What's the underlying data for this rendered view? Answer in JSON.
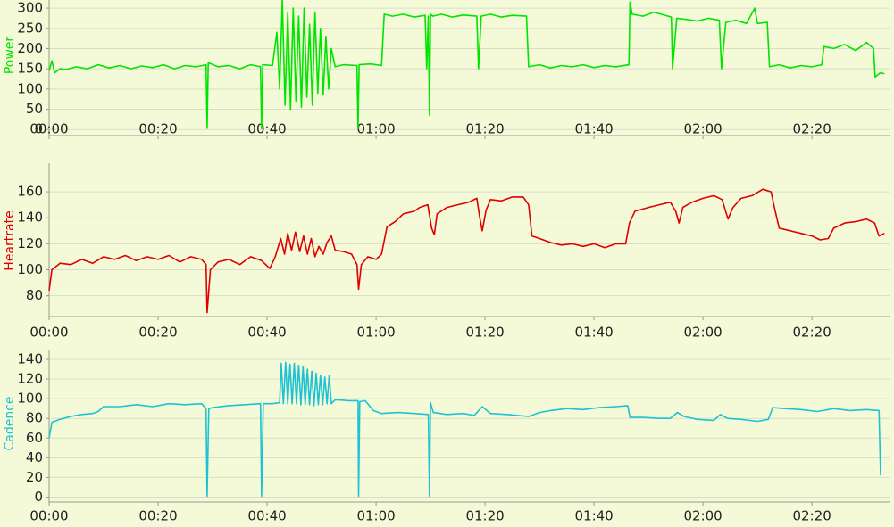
{
  "chart_data": [
    {
      "type": "line",
      "y_label": "Power",
      "color": "#00e400",
      "grid": true,
      "xlim": [
        0,
        154.4
      ],
      "ylim": [
        -15,
        320
      ],
      "yticks": [
        0,
        50,
        100,
        150,
        200,
        250,
        300
      ],
      "xticks": [
        {
          "value": 0,
          "label": "00:00"
        },
        {
          "value": 20,
          "label": "00:20"
        },
        {
          "value": 40,
          "label": "00:40"
        },
        {
          "value": 60,
          "label": "01:00"
        },
        {
          "value": 80,
          "label": "01:20"
        },
        {
          "value": 100,
          "label": "01:40"
        },
        {
          "value": 120,
          "label": "02:00"
        },
        {
          "value": 140,
          "label": "02:20"
        }
      ],
      "x": [
        0,
        0.5,
        1,
        2,
        3,
        5,
        7,
        9,
        11,
        13,
        15,
        17,
        19,
        21,
        23,
        25,
        27,
        28.8,
        29,
        29.2,
        31,
        33,
        35,
        37,
        38.8,
        39,
        39.2,
        41,
        41.8,
        42.3,
        42.8,
        43.3,
        43.8,
        44.3,
        44.8,
        45.3,
        45.8,
        46.3,
        46.8,
        47.3,
        47.8,
        48.3,
        48.8,
        49.3,
        49.8,
        50.3,
        50.8,
        51.3,
        51.8,
        52.5,
        54,
        56.5,
        56.7,
        56.9,
        59,
        61,
        61.5,
        63,
        65,
        67,
        69,
        69.3,
        69.6,
        69.8,
        70,
        70.4,
        72,
        74,
        76,
        78.5,
        78.8,
        79.3,
        81,
        83,
        85,
        87.6,
        88,
        90,
        92,
        94,
        96,
        98,
        100,
        102,
        104,
        106.4,
        106.6,
        107,
        109,
        111,
        114.2,
        114.4,
        115.2,
        117,
        119,
        121,
        123,
        123.4,
        124.2,
        126,
        128,
        129.5,
        130,
        131.8,
        132.2,
        134,
        136,
        138,
        140,
        141.8,
        142.2,
        144,
        146,
        148,
        150,
        151.3,
        151.6,
        152.5,
        153.3
      ],
      "values": [
        145,
        170,
        140,
        150,
        148,
        155,
        150,
        160,
        152,
        158,
        150,
        157,
        153,
        160,
        150,
        158,
        155,
        160,
        3,
        165,
        155,
        158,
        150,
        160,
        155,
        2,
        160,
        158,
        240,
        100,
        320,
        60,
        290,
        50,
        300,
        70,
        280,
        55,
        300,
        80,
        260,
        60,
        290,
        90,
        250,
        85,
        230,
        100,
        200,
        155,
        160,
        158,
        2,
        160,
        162,
        158,
        285,
        280,
        285,
        278,
        282,
        150,
        280,
        35,
        285,
        280,
        285,
        278,
        283,
        280,
        150,
        280,
        285,
        278,
        282,
        280,
        155,
        160,
        152,
        158,
        155,
        160,
        153,
        158,
        155,
        160,
        315,
        285,
        280,
        290,
        278,
        150,
        275,
        272,
        268,
        275,
        270,
        150,
        265,
        270,
        262,
        300,
        262,
        265,
        155,
        160,
        152,
        158,
        155,
        160,
        205,
        200,
        210,
        195,
        215,
        200,
        130,
        140,
        138
      ]
    },
    {
      "type": "line",
      "y_label": "Heartrate",
      "color": "#e00000",
      "grid": true,
      "xlim": [
        0,
        154.4
      ],
      "ylim": [
        64,
        182
      ],
      "yticks": [
        80,
        100,
        120,
        140,
        160
      ],
      "xticks": [
        {
          "value": 0,
          "label": "00:00"
        },
        {
          "value": 20,
          "label": "00:20"
        },
        {
          "value": 40,
          "label": "00:40"
        },
        {
          "value": 60,
          "label": "01:00"
        },
        {
          "value": 80,
          "label": "01:20"
        },
        {
          "value": 100,
          "label": "01:40"
        },
        {
          "value": 120,
          "label": "02:00"
        },
        {
          "value": 140,
          "label": "02:20"
        }
      ],
      "x": [
        0,
        0.5,
        2,
        4,
        6,
        8,
        10,
        12,
        14,
        16,
        18,
        20,
        22,
        24,
        26,
        28,
        28.8,
        29,
        29.6,
        31,
        33,
        35,
        37,
        39,
        40.5,
        41.5,
        42.5,
        43.2,
        43.8,
        44.5,
        45.2,
        46,
        46.7,
        47.4,
        48.1,
        48.8,
        49.5,
        50.3,
        51,
        51.8,
        52.5,
        54,
        55.5,
        56.5,
        56.8,
        57.3,
        58.5,
        60,
        61,
        62,
        63.5,
        65,
        67,
        68,
        69.5,
        70.2,
        70.7,
        71.2,
        73,
        75,
        77,
        78.5,
        79,
        79.5,
        80.2,
        81,
        83,
        85,
        87,
        88,
        88.6,
        90,
        92,
        94,
        96,
        98,
        100,
        102,
        104,
        105.8,
        106.5,
        107.5,
        110,
        112,
        114,
        115,
        115.6,
        116.3,
        118,
        120,
        122,
        123.5,
        124.3,
        124.6,
        125.5,
        127,
        129,
        131,
        132.5,
        133.2,
        134,
        136,
        138,
        140,
        141.5,
        143,
        144,
        146,
        148,
        150,
        151.5,
        152.3,
        153.3
      ],
      "values": [
        84,
        100,
        105,
        104,
        108,
        105,
        110,
        108,
        111,
        107,
        110,
        108,
        111,
        106,
        110,
        108,
        104,
        67,
        100,
        106,
        108,
        104,
        110,
        107,
        101,
        110,
        124,
        112,
        128,
        115,
        129,
        114,
        126,
        112,
        124,
        110,
        118,
        112,
        121,
        126,
        115,
        114,
        112,
        104,
        85,
        104,
        110,
        108,
        112,
        133,
        137,
        143,
        145,
        148,
        150,
        132,
        127,
        143,
        148,
        150,
        152,
        155,
        141,
        130,
        146,
        154,
        153,
        156,
        156,
        150,
        126,
        124,
        121,
        119,
        120,
        118,
        120,
        117,
        120,
        120,
        136,
        145,
        148,
        150,
        152,
        145,
        136,
        148,
        152,
        155,
        157,
        154,
        143,
        139,
        148,
        155,
        157,
        162,
        160,
        146,
        132,
        130,
        128,
        126,
        123,
        124,
        132,
        136,
        137,
        139,
        136,
        126,
        128
      ]
    },
    {
      "type": "line",
      "y_label": "Cadence",
      "color": "#1ec2d2",
      "grid": true,
      "xlim": [
        0,
        154.4
      ],
      "ylim": [
        -5,
        150
      ],
      "yticks": [
        0,
        20,
        40,
        60,
        80,
        100,
        120,
        140
      ],
      "xticks": [
        {
          "value": 0,
          "label": "00:00"
        },
        {
          "value": 20,
          "label": "00:20"
        },
        {
          "value": 40,
          "label": "00:40"
        },
        {
          "value": 60,
          "label": "01:00"
        },
        {
          "value": 80,
          "label": "01:20"
        },
        {
          "value": 100,
          "label": "01:40"
        },
        {
          "value": 120,
          "label": "02:00"
        },
        {
          "value": 140,
          "label": "02:20"
        }
      ],
      "x": [
        0,
        0.5,
        2,
        4,
        6,
        8,
        9,
        10,
        13,
        16,
        19,
        22,
        25,
        28,
        28.8,
        29,
        29.3,
        30,
        33,
        36,
        38.8,
        39,
        39.3,
        41,
        42.3,
        42.6,
        43,
        43.4,
        43.8,
        44.2,
        44.6,
        45,
        45.4,
        45.8,
        46.2,
        46.6,
        47,
        47.4,
        47.8,
        48.2,
        48.6,
        49,
        49.4,
        49.8,
        50.2,
        50.6,
        51,
        51.4,
        51.8,
        52.5,
        55,
        56.7,
        56.8,
        57,
        58,
        59.5,
        61,
        64,
        67,
        69.6,
        69.8,
        70,
        70.5,
        73,
        76,
        78,
        79.5,
        81,
        84,
        88,
        90,
        92,
        95,
        98,
        101,
        104,
        106.2,
        106.6,
        109,
        112,
        114,
        115.3,
        116.5,
        119,
        122,
        123.2,
        124.5,
        127,
        130,
        132,
        132.8,
        135,
        138,
        141,
        144,
        147,
        150,
        152.3,
        152.6
      ],
      "values": [
        60,
        76,
        79,
        82,
        84,
        85,
        87,
        92,
        92,
        94,
        92,
        95,
        94,
        95,
        90,
        1,
        90,
        91,
        93,
        94,
        95,
        1,
        95,
        95,
        96,
        136,
        95,
        137,
        95,
        135,
        95,
        136,
        95,
        134,
        94,
        133,
        94,
        130,
        94,
        128,
        93,
        126,
        94,
        124,
        94,
        122,
        95,
        124,
        95,
        99,
        98,
        98,
        1,
        97,
        98,
        88,
        85,
        86,
        85,
        84,
        1,
        96,
        86,
        84,
        85,
        83,
        92,
        85,
        84,
        82,
        86,
        88,
        90,
        89,
        91,
        92,
        93,
        81,
        81,
        80,
        80,
        86,
        82,
        79,
        78,
        84,
        80,
        79,
        77,
        79,
        91,
        90,
        89,
        87,
        90,
        88,
        89,
        88,
        22
      ]
    }
  ]
}
